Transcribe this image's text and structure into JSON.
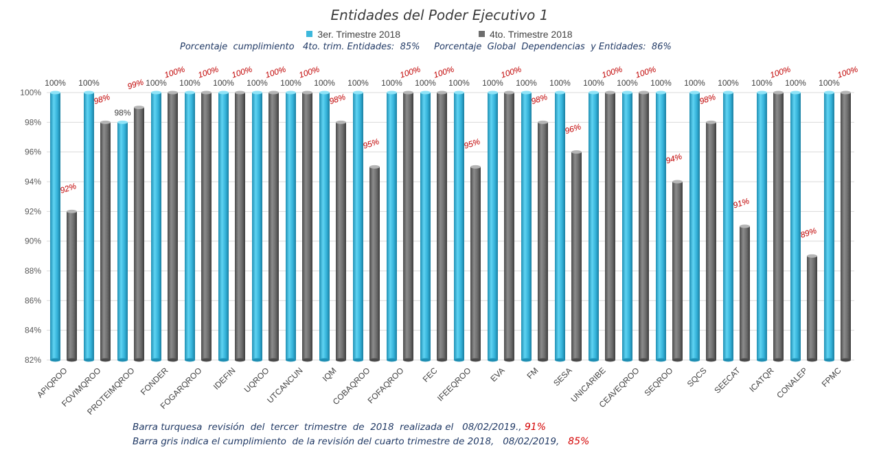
{
  "chart_data": {
    "type": "bar",
    "title": "Entidades del Poder Ejecutivo 1",
    "summary_text": "Porcentaje  cumplimiento   4to. trim. Entidades:  85%     Porcentaje  Global  Dependencias  y Entidades:  86%",
    "categories": [
      "APIQROO",
      "FOVIMQROO",
      "PROTEIMQROO",
      "FONDER",
      "FOGARQROO",
      "IDEFIN",
      "UQROO",
      "UTCANCUN",
      "IQM",
      "COBAQROO",
      "FOFAQROO",
      "FEC",
      "IFEEQROO",
      "EVA",
      "FM",
      "SESA",
      "UNICARIBE",
      "CEAVEQROO",
      "SEQROO",
      "SQCS",
      "SEECAT",
      "ICATQR",
      "CONALEP",
      "FPMC"
    ],
    "series": [
      {
        "name": "3er. Trimestre 2018",
        "color": "#3db8dc",
        "values": [
          100,
          100,
          98,
          100,
          100,
          100,
          100,
          100,
          100,
          100,
          100,
          100,
          100,
          100,
          100,
          100,
          100,
          100,
          100,
          100,
          100,
          100,
          100,
          100
        ]
      },
      {
        "name": "4to. Trimestre 2018",
        "color": "#6d6d6d",
        "values": [
          92,
          98,
          99,
          100,
          100,
          100,
          100,
          100,
          98,
          95,
          100,
          100,
          95,
          100,
          98,
          96,
          100,
          100,
          94,
          98,
          91,
          100,
          89,
          100
        ]
      }
    ],
    "labels_s1": [
      "100%",
      "100%",
      "98%",
      "100%",
      "100%",
      "100%",
      "100%",
      "100%",
      "100%",
      "100%",
      "100%",
      "100%",
      "100%",
      "100%",
      "100%",
      "100%",
      "100%",
      "100%",
      "100%",
      "100%",
      "100%",
      "100%",
      "100%",
      "100%"
    ],
    "labels_s2": [
      "92%",
      "98%",
      "99%",
      "100%",
      "100%",
      "100%",
      "100%",
      "100%",
      "98%",
      "95%",
      "100%",
      "100%",
      "95%",
      "100%",
      "98%",
      "96%",
      "100%",
      "100%",
      "94%",
      "98%",
      "91%",
      "100%",
      "89%",
      "100%"
    ],
    "y_ticks": [
      "82%",
      "84%",
      "86%",
      "88%",
      "90%",
      "92%",
      "94%",
      "96%",
      "98%",
      "100%"
    ],
    "ylim": [
      82,
      100
    ],
    "grid": true,
    "legend_position": "top-center"
  },
  "notes": {
    "line1": "Barra turquesa  revisión  del  tercer  trimestre  de  2018  realizada el   08/02/2019.,",
    "line1_value": "91%",
    "line2": "Barra gris indica el cumplimiento  de la revisión del cuarto trimestre de 2018,   08/02/2019,",
    "line2_value": "85%"
  },
  "colors": {
    "turquoise": "#3db8dc",
    "gray": "#6d6d6d",
    "red_label": "#c00000",
    "navy_text": "#1f3864"
  }
}
